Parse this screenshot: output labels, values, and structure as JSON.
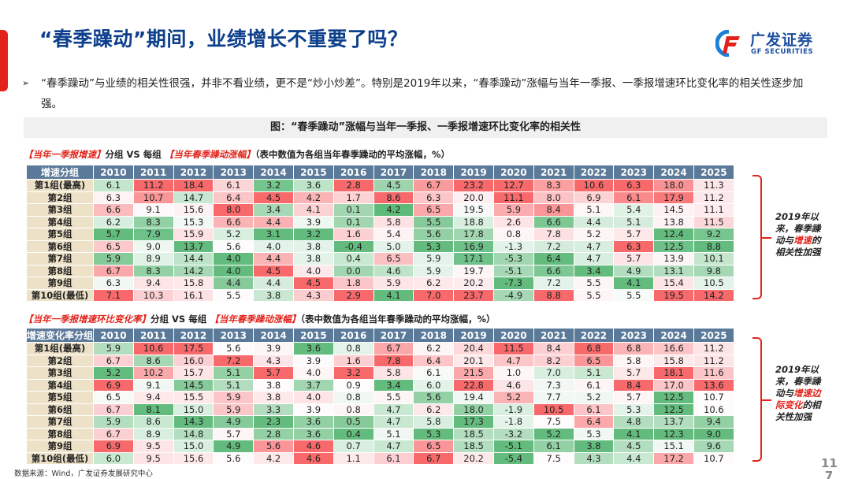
{
  "page": {
    "title": "“春季躁动”期间，业绩增长不重要了吗？",
    "logo": {
      "cn": "广发证券",
      "en": "GF SECURITIES",
      "icon": "gf-logo-icon"
    },
    "bullet_arrow": "➢",
    "bullet_text": "“春季躁动”与业绩的相关性很强，并非不看业绩，更不是“炒小炒差”。特别是2019年以来，“春季躁动”涨幅与当年一季报、一季报增速环比变化率的相关性逐步加强。",
    "figure_caption": "图：“春季躁动”涨幅与当年一季报、一季报增速环比变化率的相关性",
    "source": "数据来源：Wind，广发证券发展研究中心",
    "page_number": "11\n7",
    "colors": {
      "title_blue": "#0d3f8c",
      "accent_red": "#e2231a",
      "header_bg": "#5b7a99",
      "rowlabel_bg": "#ede2c8"
    }
  },
  "table1": {
    "subtitle": {
      "red1": "【当年一季报增速】",
      "mid": "分组 VS 每组",
      "red2": "【当年春季躁动涨幅】",
      "tail": "（表中数值为各组当年春季躁动的平均涨幅，%）"
    },
    "header": [
      "增速分组",
      "2010",
      "2011",
      "2012",
      "2013",
      "2014",
      "2015",
      "2016",
      "2017",
      "2018",
      "2019",
      "2020",
      "2021",
      "2022",
      "2023",
      "2024",
      "2025"
    ],
    "rows": [
      {
        "label": "第1组(最高)",
        "values": [
          "6.1",
          "11.2",
          "18.4",
          "6.1",
          "3.2",
          "3.6",
          "2.8",
          "4.5",
          "6.7",
          "23.2",
          "12.7",
          "8.3",
          "10.6",
          "6.3",
          "18.0",
          "11.3"
        ],
        "colors": [
          "#c3e6cd",
          "#f8696b",
          "#f8696b",
          "#fcd5d7",
          "#75c58e",
          "#bde3c8",
          "#f8696b",
          "#9dd4ad",
          "#fa9a9c",
          "#f8696b",
          "#f8696b",
          "#fb9fa1",
          "#f8696b",
          "#f8696b",
          "#fa9194",
          "#fde6e8"
        ]
      },
      {
        "label": "第2组",
        "values": [
          "6.3",
          "10.7",
          "14.7",
          "6.4",
          "4.5",
          "4.2",
          "1.7",
          "8.6",
          "6.3",
          "20.0",
          "11.1",
          "8.0",
          "6.9",
          "6.1",
          "17.9",
          "11.2"
        ],
        "colors": [
          "#fdf2f4",
          "#fa9598",
          "#c7e7d0",
          "#fcc5c7",
          "#f8696b",
          "#fbb4b6",
          "#fcd2d4",
          "#f8696b",
          "#fcc6c8",
          "#fdeff1",
          "#f8696b",
          "#fcc1c3",
          "#fcd3d5",
          "#fa8a8c",
          "#f9797b",
          "#fde9eb"
        ]
      },
      {
        "label": "第3组",
        "values": [
          "6.6",
          "9.1",
          "15.6",
          "8.0",
          "3.4",
          "4.1",
          "0.1",
          "4.2",
          "6.5",
          "19.5",
          "5.9",
          "8.4",
          "5.1",
          "5.4",
          "14.5",
          "11.1"
        ],
        "colors": [
          "#fcbcbe",
          "#fdf8f9",
          "#fdf1f3",
          "#f8696b",
          "#a7d8b5",
          "#fcd2d4",
          "#a2d6b1",
          "#5eba79",
          "#fba8aa",
          "#f6f9f8",
          "#fbacae",
          "#fa9598",
          "#fdf7f8",
          "#e0f1e5",
          "#fdf1f3",
          "#fdebed"
        ]
      },
      {
        "label": "第4组",
        "values": [
          "6.2",
          "8.3",
          "15.3",
          "6.6",
          "4.4",
          "3.9",
          "0.1",
          "5.8",
          "5.5",
          "18.8",
          "2.6",
          "6.6",
          "4.4",
          "5.1",
          "13.8",
          "11.5"
        ],
        "colors": [
          "#d8eedf",
          "#93d0a4",
          "#f2f9f4",
          "#fbb4b6",
          "#fbb0b2",
          "#eef8f1",
          "#a2d6b1",
          "#fde1e3",
          "#86ca9a",
          "#d8eedf",
          "#fde4e6",
          "#7cc792",
          "#d5ecdc",
          "#d5ecdc",
          "#fdf3f5",
          "#fcd7d9"
        ]
      },
      {
        "label": "第5组",
        "values": [
          "5.7",
          "7.9",
          "15.9",
          "5.2",
          "3.1",
          "3.2",
          "1.6",
          "5.4",
          "5.6",
          "17.8",
          "0.8",
          "7.8",
          "5.2",
          "5.7",
          "12.4",
          "9.2"
        ],
        "colors": [
          "#63bc7d",
          "#6ec189",
          "#fde1e3",
          "#d8eedf",
          "#63bc7d",
          "#63bc7d",
          "#fcd0d2",
          "#fdf3f5",
          "#93d0a4",
          "#a2d6b1",
          "#fdf5f6",
          "#fde0e2",
          "#fdf5f6",
          "#fde8ea",
          "#63bc7d",
          "#78c58f"
        ]
      },
      {
        "label": "第6组",
        "values": [
          "6.5",
          "9.0",
          "13.7",
          "5.6",
          "4.0",
          "3.8",
          "-0.4",
          "5.0",
          "5.3",
          "16.9",
          "-1.3",
          "7.2",
          "4.7",
          "6.3",
          "12.5",
          "8.8"
        ],
        "colors": [
          "#fcc9cb",
          "#eef8f1",
          "#63bc7d",
          "#fdfbfc",
          "#e4f3e9",
          "#e4f3e9",
          "#63bc7d",
          "#e4f3e9",
          "#63bc7d",
          "#6ec189",
          "#e4f3e9",
          "#d5ecdc",
          "#d8eedf",
          "#f8696b",
          "#6ec189",
          "#63bc7d"
        ]
      },
      {
        "label": "第7组",
        "values": [
          "5.9",
          "8.9",
          "14.4",
          "4.0",
          "4.4",
          "3.8",
          "0.4",
          "6.5",
          "5.9",
          "17.1",
          "-5.3",
          "6.4",
          "4.7",
          "5.7",
          "13.9",
          "10.1"
        ],
        "colors": [
          "#86ca9a",
          "#e0f1e5",
          "#bde3c8",
          "#63bc7d",
          "#fbb4b6",
          "#e4f3e9",
          "#c8e8d1",
          "#fbc0c2",
          "#e4f3e9",
          "#6ec189",
          "#a2d6b1",
          "#63bc7d",
          "#d8eedf",
          "#fde4e6",
          "#fdf5f6",
          "#c3e6cd"
        ]
      },
      {
        "label": "第8组",
        "values": [
          "6.7",
          "8.3",
          "14.2",
          "4.0",
          "4.5",
          "4.0",
          "0.0",
          "4.6",
          "5.9",
          "19.7",
          "-5.1",
          "6.6",
          "3.4",
          "4.9",
          "13.1",
          "9.8"
        ],
        "colors": [
          "#fba8aa",
          "#93d0a4",
          "#a7d8b5",
          "#63bc7d",
          "#f8696b",
          "#fde8ea",
          "#a2d6b1",
          "#bde3c8",
          "#e4f3e9",
          "#fdf5f6",
          "#a7d8b5",
          "#7cc792",
          "#63bc7d",
          "#b3ddbf",
          "#b3ddbf",
          "#a7d8b5"
        ]
      },
      {
        "label": "第9组",
        "values": [
          "6.3",
          "9.4",
          "15.8",
          "4.4",
          "4.4",
          "4.5",
          "1.8",
          "5.9",
          "6.2",
          "20.2",
          "-7.3",
          "7.2",
          "5.5",
          "4.1",
          "15.4",
          "10.5"
        ],
        "colors": [
          "#f1f8f3",
          "#fde4e6",
          "#fde8ea",
          "#86ca9a",
          "#d5ecdc",
          "#f8696b",
          "#fcc5c7",
          "#fde4e6",
          "#fde8ea",
          "#fdecee",
          "#63bc7d",
          "#e4f3e9",
          "#fdf5f6",
          "#63bc7d",
          "#fde4e6",
          "#e4f3e9"
        ]
      },
      {
        "label": "第10组(最低)",
        "values": [
          "7.1",
          "10.3",
          "16.1",
          "5.5",
          "3.8",
          "4.3",
          "2.9",
          "4.1",
          "7.0",
          "23.7",
          "-4.9",
          "8.8",
          "5.5",
          "5.5",
          "19.5",
          "14.2"
        ],
        "colors": [
          "#f8696b",
          "#fcd0d2",
          "#fde1e3",
          "#fdfbfc",
          "#c8e8d1",
          "#fccdcf",
          "#f8696b",
          "#63bc7d",
          "#f8696b",
          "#f8696b",
          "#a7d8b5",
          "#f8696b",
          "#fdf5f6",
          "#f7fbf8",
          "#f8696b",
          "#f8696b"
        ]
      }
    ],
    "annotation": {
      "pre": "2019年以来，春季躁动与",
      "red": "增速",
      "post": "的相关性加强"
    }
  },
  "table2": {
    "subtitle": {
      "red1": "【当年一季报增速环比变化率】",
      "mid": "分组 VS 每组",
      "red2": "【当年春季躁动涨幅】",
      "tail": "（表中数值为各组当年春季躁动的平均涨幅，%）"
    },
    "header": [
      "增速变化率分组",
      "2010",
      "2011",
      "2012",
      "2013",
      "2014",
      "2015",
      "2016",
      "2017",
      "2018",
      "2019",
      "2020",
      "2021",
      "2022",
      "2023",
      "2024",
      "2025"
    ],
    "rows": [
      {
        "label": "第1组(最高)",
        "values": [
          "5.9",
          "10.6",
          "17.5",
          "5.6",
          "3.9",
          "3.6",
          "0.8",
          "6.7",
          "6.2",
          "20.4",
          "11.5",
          "8.4",
          "6.8",
          "6.8",
          "16.6",
          "11.2"
        ],
        "colors": [
          "#b3ddbf",
          "#f8696b",
          "#f8696b",
          "#fdfbfc",
          "#fdf5f6",
          "#63bc7d",
          "#e4f3e9",
          "#fba8aa",
          "#fdf5f6",
          "#fdd9db",
          "#f8696b",
          "#fcd0d2",
          "#f8696b",
          "#fbb4b6",
          "#fcc5c7",
          "#fde4e6"
        ]
      },
      {
        "label": "第2组",
        "values": [
          "6.7",
          "8.6",
          "16.0",
          "7.2",
          "4.3",
          "3.9",
          "1.6",
          "7.8",
          "6.4",
          "20.1",
          "4.7",
          "8.2",
          "6.5",
          "5.8",
          "15.8",
          "11.2"
        ],
        "colors": [
          "#fcd0d2",
          "#a7d8b5",
          "#fcd0d2",
          "#f8696b",
          "#fde4e6",
          "#fdfbfc",
          "#fcd0d2",
          "#f8696b",
          "#fcc5c7",
          "#fde8ea",
          "#fcc5c7",
          "#fcd0d2",
          "#fa9598",
          "#fdf5f6",
          "#fde8ea",
          "#fde4e6"
        ]
      },
      {
        "label": "第3组",
        "values": [
          "5.2",
          "10.2",
          "15.7",
          "5.1",
          "5.7",
          "4.0",
          "3.2",
          "5.8",
          "6.1",
          "21.5",
          "1.0",
          "7.0",
          "5.1",
          "5.7",
          "18.1",
          "11.6"
        ],
        "colors": [
          "#63bc7d",
          "#fba8aa",
          "#fde4e6",
          "#93d0a4",
          "#f8696b",
          "#fdf5f6",
          "#f8696b",
          "#fde4e6",
          "#f7fbf8",
          "#fba8aa",
          "#fdf5f6",
          "#d8eedf",
          "#c8e8d1",
          "#fde8ea",
          "#f8696b",
          "#fcc5c7"
        ]
      },
      {
        "label": "第4组",
        "values": [
          "6.9",
          "9.1",
          "14.5",
          "5.1",
          "3.8",
          "3.7",
          "0.9",
          "3.4",
          "6.0",
          "22.8",
          "4.6",
          "7.3",
          "6.1",
          "8.4",
          "17.0",
          "13.6"
        ],
        "colors": [
          "#f8696b",
          "#f1f8f3",
          "#86ca9a",
          "#b3ddbf",
          "#fdfbfc",
          "#a2d6b1",
          "#fdfbfc",
          "#63bc7d",
          "#e4f3e9",
          "#f8696b",
          "#fde4e6",
          "#f1f8f3",
          "#fdf5f6",
          "#f8696b",
          "#fcc5c7",
          "#f8696b"
        ]
      },
      {
        "label": "第5组",
        "values": [
          "6.5",
          "9.4",
          "15.5",
          "5.9",
          "3.8",
          "4.0",
          "0.8",
          "5.5",
          "5.6",
          "19.4",
          "5.2",
          "7.7",
          "5.2",
          "5.7",
          "12.5",
          "10.7"
        ],
        "colors": [
          "#f7fbf8",
          "#fde8ea",
          "#fde8ea",
          "#fcc5c7",
          "#fde8ea",
          "#fde4e6",
          "#f1f8f3",
          "#fdf5f6",
          "#93d0a4",
          "#f1f8f3",
          "#fbb4b6",
          "#f1f8f3",
          "#f1f8f3",
          "#fdf5f6",
          "#63bc7d",
          "#fdfbfc"
        ]
      },
      {
        "label": "第6组",
        "values": [
          "6.7",
          "8.1",
          "15.0",
          "5.9",
          "3.3",
          "3.9",
          "0.8",
          "4.7",
          "6.2",
          "18.0",
          "-1.9",
          "10.5",
          "6.1",
          "5.3",
          "12.5",
          "10.6"
        ],
        "colors": [
          "#fcd0d2",
          "#63bc7d",
          "#d8eedf",
          "#fcc5c7",
          "#b3ddbf",
          "#fdfbfc",
          "#fdf5f6",
          "#c8e8d1",
          "#fde8ea",
          "#93d0a4",
          "#d8eedf",
          "#f8696b",
          "#fcc5c7",
          "#e4f3e9",
          "#63bc7d",
          "#fdfbfc"
        ]
      },
      {
        "label": "第7组",
        "values": [
          "5.9",
          "8.6",
          "14.3",
          "4.9",
          "2.3",
          "3.6",
          "0.5",
          "4.7",
          "5.8",
          "17.3",
          "-1.8",
          "7.5",
          "6.4",
          "4.8",
          "13.7",
          "9.4"
        ],
        "colors": [
          "#b3ddbf",
          "#c8e8d1",
          "#63bc7d",
          "#86ca9a",
          "#63bc7d",
          "#93d0a4",
          "#86ca9a",
          "#c8e8d1",
          "#d8eedf",
          "#63bc7d",
          "#e4f3e9",
          "#fdfbfc",
          "#fba8aa",
          "#b3ddbf",
          "#b3ddbf",
          "#93d0a4"
        ]
      },
      {
        "label": "第8组",
        "values": [
          "6.7",
          "8.9",
          "14.8",
          "5.7",
          "2.8",
          "3.6",
          "0.4",
          "5.1",
          "5.3",
          "18.5",
          "-3.2",
          "5.2",
          "5.3",
          "4.1",
          "12.3",
          "9.0"
        ],
        "colors": [
          "#fcd0d2",
          "#d8eedf",
          "#b3ddbf",
          "#fdf5f6",
          "#93d0a4",
          "#93d0a4",
          "#63bc7d",
          "#f1f8f3",
          "#63bc7d",
          "#b3ddbf",
          "#b3ddbf",
          "#63bc7d",
          "#f1f8f3",
          "#63bc7d",
          "#63bc7d",
          "#63bc7d"
        ]
      },
      {
        "label": "第9组",
        "values": [
          "6.9",
          "9.5",
          "15.0",
          "4.9",
          "5.6",
          "4.6",
          "0.7",
          "4.7",
          "6.5",
          "18.5",
          "-5.1",
          "6.1",
          "3.8",
          "4.5",
          "15.1",
          "9.6"
        ],
        "colors": [
          "#f8696b",
          "#fde4e6",
          "#d8eedf",
          "#63bc7d",
          "#fa9598",
          "#f8696b",
          "#d8eedf",
          "#c8e8d1",
          "#fa9598",
          "#b3ddbf",
          "#63bc7d",
          "#93d0a4",
          "#63bc7d",
          "#b3ddbf",
          "#f1f8f3",
          "#a7d8b5"
        ]
      },
      {
        "label": "第10组(最低)",
        "values": [
          "6.0",
          "9.5",
          "15.6",
          "5.6",
          "4.2",
          "4.6",
          "1.1",
          "6.1",
          "6.7",
          "20.2",
          "-5.4",
          "7.5",
          "4.3",
          "4.4",
          "17.2",
          "10.7"
        ],
        "colors": [
          "#c8e8d1",
          "#fde4e6",
          "#fde8ea",
          "#fdfbfc",
          "#fde8ea",
          "#f8696b",
          "#fde8ea",
          "#fcd0d2",
          "#f8696b",
          "#fde8ea",
          "#63bc7d",
          "#fdfbfc",
          "#b3ddbf",
          "#c8e8d1",
          "#fba8aa",
          "#fdfbfc"
        ]
      }
    ],
    "annotation": {
      "pre": "2019年以来，春季躁动与",
      "red": "增速边际变化",
      "post": "的相关性加强"
    }
  }
}
